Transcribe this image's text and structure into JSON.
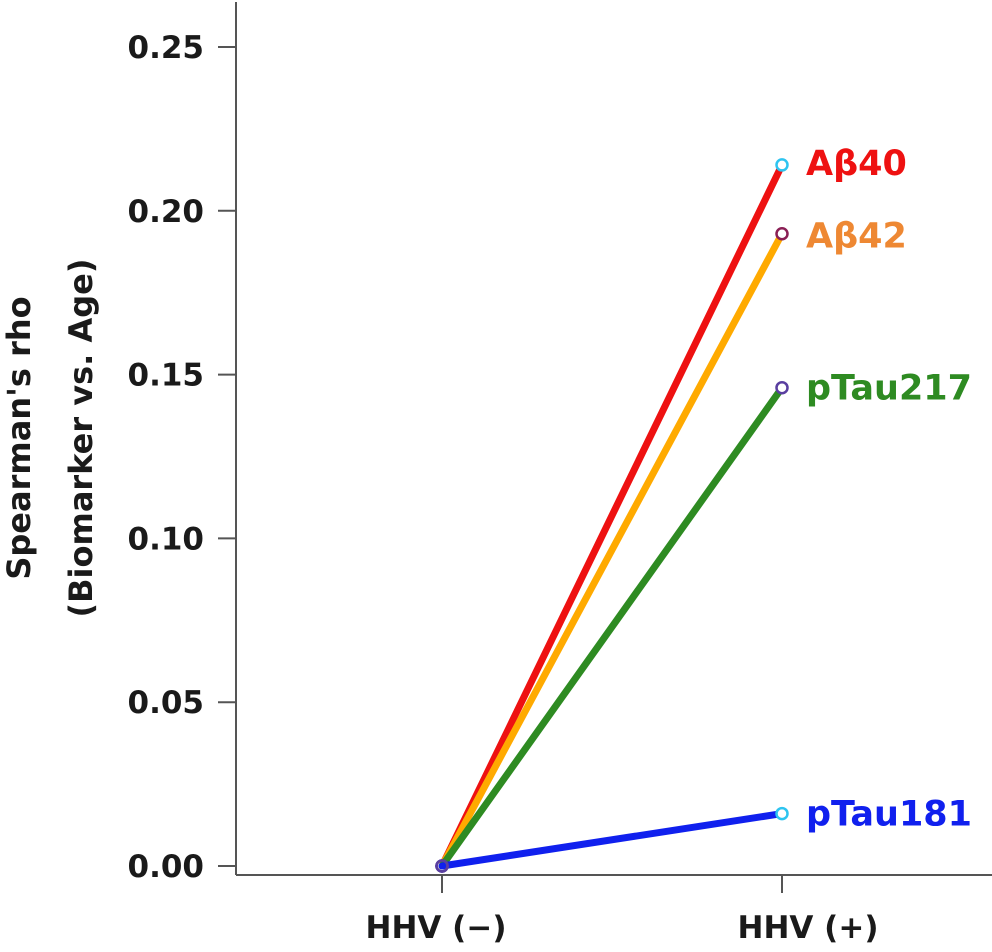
{
  "chart_data": {
    "type": "line",
    "title": "",
    "xlabel": "",
    "ylabel_line1": "Spearman's rho",
    "ylabel_line2": "(Biomarker vs. Age)",
    "categories": [
      "HHV (−)",
      "HHV (+)"
    ],
    "ylim": [
      0,
      0.26
    ],
    "yticks": [
      0.0,
      0.05,
      0.1,
      0.15,
      0.2,
      0.25
    ],
    "ytick_labels": [
      "0.00",
      "0.05",
      "0.10",
      "0.15",
      "0.20",
      "0.25"
    ],
    "grid": false,
    "legend": "labels at line ends",
    "series": [
      {
        "name": "Aβ40",
        "values": [
          0.0,
          0.214
        ],
        "color": "#ee1111",
        "marker_color": "#2ec4f0"
      },
      {
        "name": "Aβ42",
        "values": [
          0.0,
          0.193
        ],
        "color": "#ffaa00",
        "label_color": "#ee8833",
        "marker_color": "#8a1f55"
      },
      {
        "name": "pTau217",
        "values": [
          0.0,
          0.146
        ],
        "color": "#2e8b22",
        "marker_color": "#5a3fa0"
      },
      {
        "name": "pTau181",
        "values": [
          0.0,
          0.016
        ],
        "color": "#1020ee",
        "marker_color": "#2ec4f0"
      }
    ],
    "origin_marker_color": "#5a3fa0"
  }
}
